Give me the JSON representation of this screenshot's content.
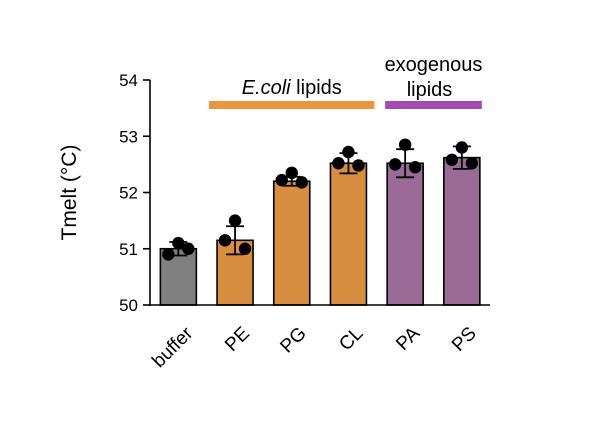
{
  "chart_data": {
    "type": "bar",
    "ylabel": "Tmelt (°C)",
    "ylim": [
      50,
      54
    ],
    "yticks": [
      50,
      51,
      52,
      53,
      54
    ],
    "categories": [
      "buffer",
      "PE",
      "PG",
      "CL",
      "PA",
      "PS"
    ],
    "values": [
      51.0,
      51.15,
      52.2,
      52.52,
      52.52,
      52.62
    ],
    "error": [
      0.12,
      0.25,
      0.08,
      0.18,
      0.25,
      0.2
    ],
    "points": [
      [
        51.1,
        50.9,
        51.0
      ],
      [
        51.5,
        51.15,
        51.0
      ],
      [
        52.35,
        52.22,
        52.18
      ],
      [
        52.72,
        52.52,
        52.48
      ],
      [
        52.85,
        52.5,
        52.45
      ],
      [
        52.8,
        52.58,
        52.52
      ]
    ],
    "bar_colors": [
      "#808080",
      "#D88E40",
      "#D88E40",
      "#D88E40",
      "#9A6B96",
      "#9A6B96"
    ],
    "groups": [
      {
        "label_italic": "E.coli",
        "label_rest": " lipids",
        "from": 1,
        "to": 3,
        "color": "#E8973F"
      },
      {
        "label_line1": "exogenous",
        "label_line2": "lipids",
        "from": 4,
        "to": 5,
        "color": "#A24BB3"
      }
    ]
  }
}
